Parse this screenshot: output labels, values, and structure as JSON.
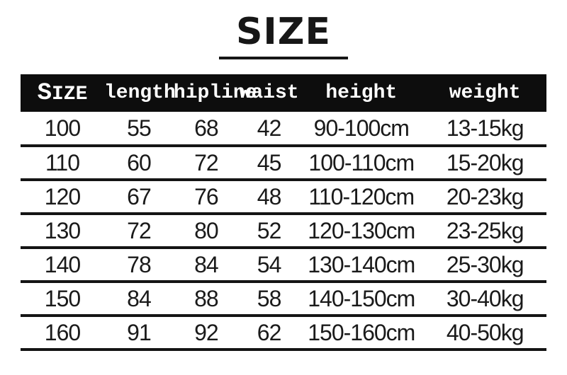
{
  "page": {
    "title": "SIZE"
  },
  "chart_data": {
    "type": "table",
    "title": "SIZE",
    "columns": [
      "SIZE",
      "length",
      "hipline",
      "waist",
      "height",
      "weight"
    ],
    "rows": [
      [
        "100",
        "55",
        "68",
        "42",
        "90-100cm",
        "13-15kg"
      ],
      [
        "110",
        "60",
        "72",
        "45",
        "100-110cm",
        "15-20kg"
      ],
      [
        "120",
        "67",
        "76",
        "48",
        "110-120cm",
        "20-23kg"
      ],
      [
        "130",
        "72",
        "80",
        "52",
        "120-130cm",
        "23-25kg"
      ],
      [
        "140",
        "78",
        "84",
        "54",
        "130-140cm",
        "25-30kg"
      ],
      [
        "150",
        "84",
        "88",
        "58",
        "140-150cm",
        "30-40kg"
      ],
      [
        "160",
        "91",
        "92",
        "62",
        "150-160cm",
        "40-50kg"
      ]
    ]
  },
  "colors": {
    "background": "#ffffff",
    "header_bg": "#0d0d0d",
    "header_text": "#ffffff",
    "body_text": "#1a1a1a",
    "line": "#141414"
  }
}
